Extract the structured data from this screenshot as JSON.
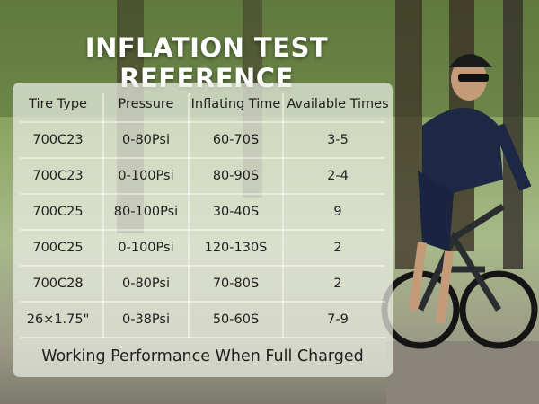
{
  "header": {
    "title": "INFLATION TEST REFERENCE"
  },
  "table": {
    "columns": [
      "Tire Type",
      "Pressure",
      "Inflating Time",
      "Available Times"
    ],
    "rows": [
      [
        "700C23",
        "0-80Psi",
        "60-70S",
        "3-5"
      ],
      [
        "700C23",
        "0-100Psi",
        "80-90S",
        "2-4"
      ],
      [
        "700C25",
        "80-100Psi",
        "30-40S",
        "9"
      ],
      [
        "700C25",
        "0-100Psi",
        "120-130S",
        "2"
      ],
      [
        "700C28",
        "0-80Psi",
        "70-80S",
        "2"
      ],
      [
        "26×1.75\"",
        "0-38Psi",
        "50-60S",
        "7-9"
      ]
    ],
    "footer": "Working Performance When Full Charged"
  }
}
